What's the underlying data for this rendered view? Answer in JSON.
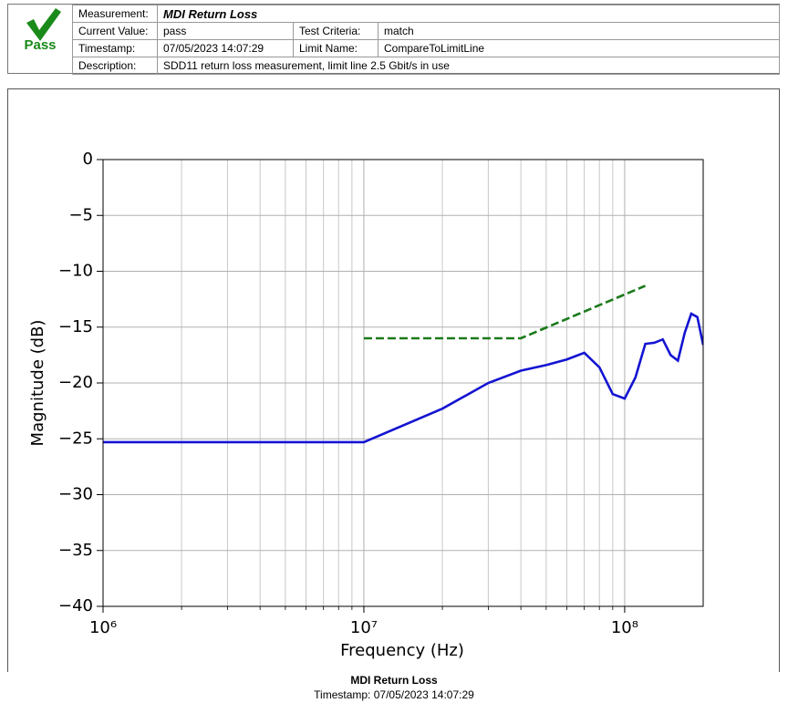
{
  "header": {
    "status": "Pass",
    "rows": [
      [
        "Measurement:",
        "MDI Return Loss"
      ],
      [
        "Current Value:",
        "pass",
        "Test Criteria:",
        "match"
      ],
      [
        "Timestamp:",
        "07/05/2023 14:07:29",
        "Limit Name:",
        "CompareToLimitLine"
      ],
      [
        "Description:",
        "SDD11 return loss measurement, limit line 2.5 Gbit/s in use"
      ]
    ]
  },
  "chart_data": {
    "type": "line",
    "x_label": "Frequency (Hz)",
    "y_label": "Magnitude (dB)",
    "xlog": true,
    "grid": true,
    "xlim": [
      1000000,
      200000000
    ],
    "xticks": [
      {
        "value": 1000000,
        "label": "10⁶"
      },
      {
        "value": 10000000,
        "label": "10⁷"
      },
      {
        "value": 100000000,
        "label": "10⁸"
      }
    ],
    "ylim": [
      -40,
      0
    ],
    "yticks": [
      {
        "value": -40,
        "label": "−40"
      },
      {
        "value": -35,
        "label": "−35"
      },
      {
        "value": -30,
        "label": "−30"
      },
      {
        "value": -25,
        "label": "−25"
      },
      {
        "value": -20,
        "label": "−20"
      },
      {
        "value": -15,
        "label": "−15"
      },
      {
        "value": -10,
        "label": "−10"
      },
      {
        "value": -5,
        "label": "−5"
      },
      0
    ],
    "series": [
      {
        "color": "#1414d2",
        "style": "solid",
        "x": [
          1000000,
          10000000,
          20000000,
          30000000,
          40000000,
          50000000,
          60000000,
          70000000,
          80000000,
          90000000,
          100000000,
          110000000,
          120000000,
          130000000,
          140000000,
          150000000,
          160000000,
          170000000,
          180000000,
          190000000,
          200000000
        ],
        "values": [
          -25.3,
          -25.3,
          -22.3,
          -20,
          -18.9,
          -18.4,
          -17.9,
          -17.3,
          -18.6,
          -21,
          -21.4,
          -19.5,
          -16.5,
          -16.4,
          -16.1,
          -17.5,
          -18,
          -15.5,
          -13.8,
          -14.1,
          -16.6
        ]
      },
      {
        "color": "#1a7a1a",
        "style": "dashed",
        "x": [
          10000000,
          40000000,
          120000000
        ],
        "values": [
          -16,
          -16,
          -11.3
        ]
      }
    ]
  },
  "footer": {
    "title": "MDI Return Loss",
    "timestamp": "Timestamp: 07/05/2023 14:07:29"
  }
}
